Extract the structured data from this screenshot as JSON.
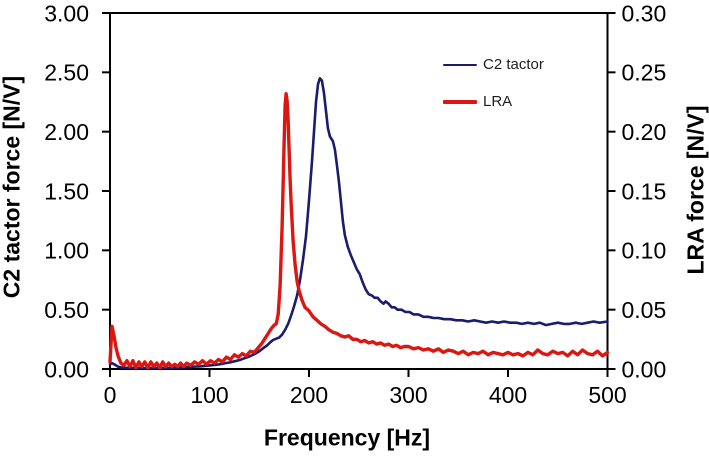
{
  "figure": {
    "background": "#ffffff",
    "axis_color": "#000000",
    "legend": {
      "items": [
        {
          "label": "C2 tactor",
          "color": "#1b1b6f",
          "line_width": 2.6
        },
        {
          "label": "LRA",
          "color": "#da1710",
          "line_width": 3.4
        }
      ]
    },
    "axes": {
      "x": {
        "title": "Frequency [Hz]",
        "min": 0,
        "max": 500,
        "tick_values": [
          0,
          100,
          200,
          300,
          400,
          500
        ],
        "tick_labels": [
          "0",
          "100",
          "200",
          "300",
          "400",
          "500"
        ]
      },
      "y_left": {
        "title": "C2 tactor force [N/V]",
        "min": 0,
        "max": 3.0,
        "tick_values": [
          0,
          0.5,
          1.0,
          1.5,
          2.0,
          2.5,
          3.0
        ],
        "tick_labels": [
          "0.00",
          "0.50",
          "1.00",
          "1.50",
          "2.00",
          "2.50",
          "3.00"
        ]
      },
      "y_right": {
        "title": "LRA force [N/V]",
        "min": 0,
        "max": 0.3,
        "tick_values": [
          0,
          0.05,
          0.1,
          0.15,
          0.2,
          0.25,
          0.3
        ],
        "tick_labels": [
          "0.00",
          "0.05",
          "0.10",
          "0.15",
          "0.20",
          "0.25",
          "0.30"
        ]
      }
    }
  },
  "chart_data": {
    "type": "line",
    "title": "",
    "xlabel": "Frequency [Hz]",
    "ylabel_left": "C2 tactor force [N/V]",
    "ylabel_right": "LRA force [N/V]",
    "xlim": [
      0,
      500
    ],
    "ylim_left": [
      0,
      3.0
    ],
    "ylim_right": [
      0,
      0.3
    ],
    "grid": false,
    "legend_position": "upper-right-inside",
    "series": [
      {
        "name": "C2 tactor",
        "y_axis": "left",
        "color": "#1b1b6f",
        "line_width": 2.6,
        "peak": {
          "x": 211,
          "y": 2.45
        },
        "points": [
          [
            0,
            0.04
          ],
          [
            2,
            0.05
          ],
          [
            5,
            0.035
          ],
          [
            8,
            0.02
          ],
          [
            12,
            0.012
          ],
          [
            16,
            0.01
          ],
          [
            20,
            0.012
          ],
          [
            25,
            0.008
          ],
          [
            30,
            0.01
          ],
          [
            35,
            0.007
          ],
          [
            40,
            0.009
          ],
          [
            45,
            0.007
          ],
          [
            50,
            0.009
          ],
          [
            55,
            0.01
          ],
          [
            60,
            0.009
          ],
          [
            65,
            0.012
          ],
          [
            70,
            0.012
          ],
          [
            75,
            0.015
          ],
          [
            80,
            0.016
          ],
          [
            85,
            0.02
          ],
          [
            90,
            0.022
          ],
          [
            95,
            0.026
          ],
          [
            100,
            0.03
          ],
          [
            105,
            0.034
          ],
          [
            110,
            0.04
          ],
          [
            115,
            0.048
          ],
          [
            120,
            0.055
          ],
          [
            125,
            0.065
          ],
          [
            130,
            0.075
          ],
          [
            135,
            0.09
          ],
          [
            140,
            0.105
          ],
          [
            145,
            0.125
          ],
          [
            150,
            0.15
          ],
          [
            154,
            0.175
          ],
          [
            158,
            0.2
          ],
          [
            161,
            0.225
          ],
          [
            164,
            0.245
          ],
          [
            167,
            0.255
          ],
          [
            170,
            0.265
          ],
          [
            173,
            0.29
          ],
          [
            176,
            0.33
          ],
          [
            179,
            0.38
          ],
          [
            182,
            0.45
          ],
          [
            185,
            0.53
          ],
          [
            188,
            0.62
          ],
          [
            191,
            0.75
          ],
          [
            194,
            0.92
          ],
          [
            197,
            1.12
          ],
          [
            200,
            1.42
          ],
          [
            203,
            1.75
          ],
          [
            205,
            2.0
          ],
          [
            207,
            2.25
          ],
          [
            209,
            2.4
          ],
          [
            211,
            2.45
          ],
          [
            213,
            2.43
          ],
          [
            215,
            2.33
          ],
          [
            217,
            2.18
          ],
          [
            219,
            2.03
          ],
          [
            221,
            1.96
          ],
          [
            224,
            1.92
          ],
          [
            226,
            1.85
          ],
          [
            228,
            1.72
          ],
          [
            230,
            1.58
          ],
          [
            232,
            1.42
          ],
          [
            234,
            1.25
          ],
          [
            236,
            1.13
          ],
          [
            239,
            1.03
          ],
          [
            242,
            0.96
          ],
          [
            245,
            0.9
          ],
          [
            248,
            0.84
          ],
          [
            251,
            0.8
          ],
          [
            254,
            0.73
          ],
          [
            257,
            0.67
          ],
          [
            260,
            0.63
          ],
          [
            263,
            0.62
          ],
          [
            266,
            0.6
          ],
          [
            269,
            0.6
          ],
          [
            272,
            0.57
          ],
          [
            275,
            0.55
          ],
          [
            277,
            0.57
          ],
          [
            280,
            0.55
          ],
          [
            283,
            0.52
          ],
          [
            286,
            0.52
          ],
          [
            289,
            0.5
          ],
          [
            293,
            0.5
          ],
          [
            297,
            0.48
          ],
          [
            301,
            0.48
          ],
          [
            305,
            0.46
          ],
          [
            310,
            0.46
          ],
          [
            315,
            0.44
          ],
          [
            320,
            0.44
          ],
          [
            325,
            0.43
          ],
          [
            330,
            0.43
          ],
          [
            336,
            0.42
          ],
          [
            342,
            0.42
          ],
          [
            348,
            0.41
          ],
          [
            354,
            0.41
          ],
          [
            360,
            0.4
          ],
          [
            366,
            0.41
          ],
          [
            372,
            0.4
          ],
          [
            378,
            0.39
          ],
          [
            384,
            0.4
          ],
          [
            390,
            0.39
          ],
          [
            396,
            0.4
          ],
          [
            402,
            0.39
          ],
          [
            408,
            0.39
          ],
          [
            414,
            0.38
          ],
          [
            420,
            0.39
          ],
          [
            426,
            0.38
          ],
          [
            432,
            0.39
          ],
          [
            438,
            0.37
          ],
          [
            444,
            0.38
          ],
          [
            450,
            0.39
          ],
          [
            456,
            0.38
          ],
          [
            462,
            0.38
          ],
          [
            468,
            0.39
          ],
          [
            474,
            0.38
          ],
          [
            480,
            0.39
          ],
          [
            486,
            0.4
          ],
          [
            492,
            0.39
          ],
          [
            500,
            0.4
          ]
        ]
      },
      {
        "name": "LRA",
        "y_axis": "right",
        "color": "#da1710",
        "line_width": 3.4,
        "peak": {
          "x": 177,
          "y": 0.232
        },
        "points": [
          [
            0,
            0.006
          ],
          [
            2,
            0.036
          ],
          [
            4,
            0.028
          ],
          [
            6,
            0.018
          ],
          [
            8,
            0.011
          ],
          [
            11,
            0.005
          ],
          [
            14,
            0.003
          ],
          [
            17,
            0.007
          ],
          [
            20,
            0.002
          ],
          [
            23,
            0.007
          ],
          [
            26,
            0.001
          ],
          [
            29,
            0.006
          ],
          [
            32,
            0.002
          ],
          [
            35,
            0.006
          ],
          [
            38,
            0.001
          ],
          [
            41,
            0.006
          ],
          [
            44,
            0.002
          ],
          [
            47,
            0.005
          ],
          [
            50,
            0.001
          ],
          [
            53,
            0.006
          ],
          [
            56,
            0.002
          ],
          [
            59,
            0.005
          ],
          [
            62,
            0.002
          ],
          [
            65,
            0.004
          ],
          [
            68,
            0.002
          ],
          [
            71,
            0.005
          ],
          [
            74,
            0.002
          ],
          [
            77,
            0.005
          ],
          [
            81,
            0.003
          ],
          [
            85,
            0.006
          ],
          [
            89,
            0.004
          ],
          [
            93,
            0.007
          ],
          [
            97,
            0.004
          ],
          [
            101,
            0.007
          ],
          [
            105,
            0.005
          ],
          [
            109,
            0.008
          ],
          [
            113,
            0.006
          ],
          [
            117,
            0.01
          ],
          [
            121,
            0.008
          ],
          [
            125,
            0.012
          ],
          [
            129,
            0.01
          ],
          [
            133,
            0.013
          ],
          [
            137,
            0.011
          ],
          [
            141,
            0.015
          ],
          [
            145,
            0.014
          ],
          [
            149,
            0.018
          ],
          [
            153,
            0.022
          ],
          [
            156,
            0.026
          ],
          [
            159,
            0.03
          ],
          [
            162,
            0.034
          ],
          [
            165,
            0.037
          ],
          [
            167,
            0.038
          ],
          [
            169,
            0.046
          ],
          [
            171,
            0.07
          ],
          [
            173,
            0.12
          ],
          [
            174,
            0.155
          ],
          [
            175,
            0.19
          ],
          [
            176,
            0.222
          ],
          [
            177,
            0.232
          ],
          [
            178,
            0.226
          ],
          [
            179,
            0.21
          ],
          [
            180,
            0.185
          ],
          [
            181,
            0.16
          ],
          [
            182,
            0.14
          ],
          [
            184,
            0.108
          ],
          [
            186,
            0.088
          ],
          [
            188,
            0.074
          ],
          [
            190,
            0.066
          ],
          [
            193,
            0.058
          ],
          [
            196,
            0.052
          ],
          [
            200,
            0.049
          ],
          [
            204,
            0.044
          ],
          [
            208,
            0.041
          ],
          [
            212,
            0.038
          ],
          [
            216,
            0.036
          ],
          [
            220,
            0.033
          ],
          [
            224,
            0.031
          ],
          [
            228,
            0.03
          ],
          [
            232,
            0.028
          ],
          [
            236,
            0.027
          ],
          [
            240,
            0.028
          ],
          [
            244,
            0.025
          ],
          [
            248,
            0.025
          ],
          [
            252,
            0.023
          ],
          [
            256,
            0.024
          ],
          [
            260,
            0.022
          ],
          [
            264,
            0.023
          ],
          [
            268,
            0.021
          ],
          [
            272,
            0.022
          ],
          [
            276,
            0.02
          ],
          [
            280,
            0.021
          ],
          [
            284,
            0.019
          ],
          [
            288,
            0.02
          ],
          [
            292,
            0.018
          ],
          [
            296,
            0.019
          ],
          [
            300,
            0.019
          ],
          [
            305,
            0.017
          ],
          [
            310,
            0.018
          ],
          [
            315,
            0.016
          ],
          [
            320,
            0.017
          ],
          [
            325,
            0.015
          ],
          [
            330,
            0.017
          ],
          [
            335,
            0.014
          ],
          [
            340,
            0.016
          ],
          [
            345,
            0.015
          ],
          [
            350,
            0.013
          ],
          [
            355,
            0.015
          ],
          [
            360,
            0.012
          ],
          [
            365,
            0.014
          ],
          [
            370,
            0.013
          ],
          [
            375,
            0.015
          ],
          [
            380,
            0.012
          ],
          [
            385,
            0.014
          ],
          [
            390,
            0.013
          ],
          [
            395,
            0.012
          ],
          [
            400,
            0.014
          ],
          [
            405,
            0.012
          ],
          [
            410,
            0.013
          ],
          [
            415,
            0.011
          ],
          [
            420,
            0.014
          ],
          [
            425,
            0.012
          ],
          [
            430,
            0.016
          ],
          [
            435,
            0.013
          ],
          [
            440,
            0.012
          ],
          [
            445,
            0.015
          ],
          [
            450,
            0.013
          ],
          [
            455,
            0.014
          ],
          [
            460,
            0.011
          ],
          [
            465,
            0.015
          ],
          [
            470,
            0.012
          ],
          [
            475,
            0.016
          ],
          [
            480,
            0.013
          ],
          [
            485,
            0.012
          ],
          [
            490,
            0.015
          ],
          [
            495,
            0.011
          ],
          [
            500,
            0.014
          ]
        ]
      }
    ]
  }
}
